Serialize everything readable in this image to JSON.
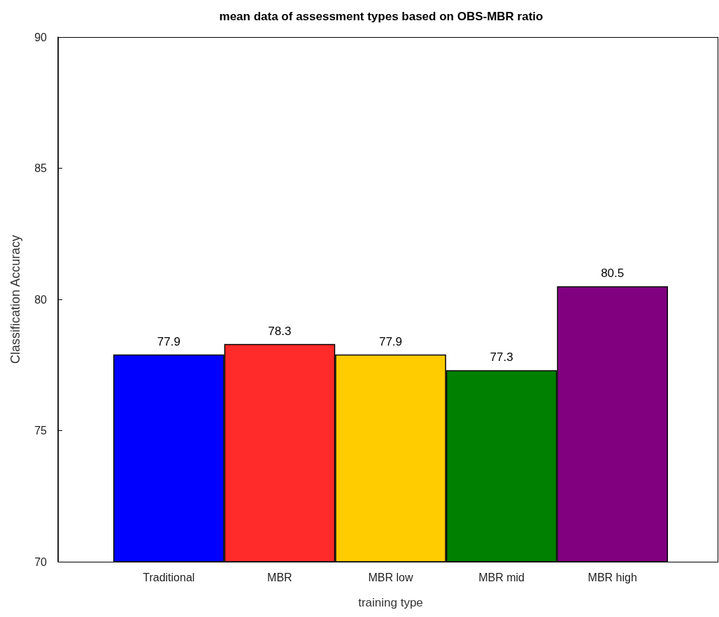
{
  "chart_data": {
    "type": "bar",
    "title": "mean data of assessment types based on OBS-MBR ratio",
    "xlabel": "training type",
    "ylabel": "Classification Accuracy",
    "categories": [
      "Traditional",
      "MBR",
      "MBR low",
      "MBR mid",
      "MBR high"
    ],
    "values": [
      77.9,
      78.3,
      77.9,
      77.3,
      80.5
    ],
    "colors": [
      "#0000ff",
      "#ff2a2a",
      "#ffcc00",
      "#008000",
      "#800080"
    ],
    "ylim": [
      70,
      90
    ],
    "yticks": [
      70,
      75,
      80,
      85,
      90
    ],
    "data_labels": true,
    "grid": false
  }
}
